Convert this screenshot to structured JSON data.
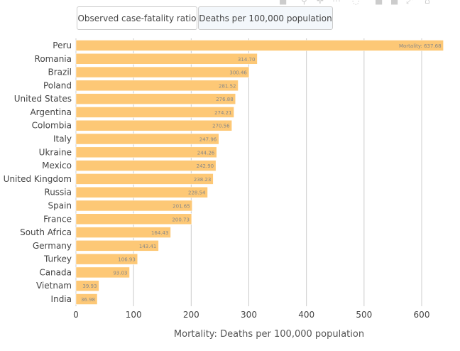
{
  "buttons": [
    {
      "label": "Observed case-fatality ratio",
      "active": false
    },
    {
      "label": "Deaths per 100,000 population",
      "active": true
    }
  ],
  "toolbar_icons": [
    "camera-icon",
    "zoom-icon",
    "pan-icon",
    "box-select-icon",
    "lasso-icon",
    "zoom-in-icon",
    "zoom-out-icon",
    "autoscale-icon",
    "home-icon"
  ],
  "colors": {
    "bar": "#fdc876",
    "grid": "#cccccc",
    "text": "#444444",
    "label": "#888888"
  },
  "chart_data": {
    "type": "bar",
    "orientation": "horizontal",
    "categories": [
      "Peru",
      "Romania",
      "Brazil",
      "Poland",
      "United States",
      "Argentina",
      "Colombia",
      "Italy",
      "Ukraine",
      "Mexico",
      "United Kingdom",
      "Russia",
      "Spain",
      "France",
      "South Africa",
      "Germany",
      "Turkey",
      "Canada",
      "Vietnam",
      "India"
    ],
    "values": [
      637.68,
      314.7,
      300.46,
      281.52,
      276.88,
      274.21,
      270.56,
      247.96,
      244.26,
      242.9,
      238.23,
      228.54,
      201.65,
      200.73,
      164.43,
      143.41,
      106.93,
      93.03,
      39.93,
      36.98
    ],
    "data_labels": [
      "Mortality: 637.68",
      "314.70",
      "300.46",
      "281.52",
      "276.88",
      "274.21",
      "270.56",
      "247.96",
      "244.26",
      "242.90",
      "238.23",
      "228.54",
      "201.65",
      "200.73",
      "164.43",
      "143.41",
      "106.93",
      "93.03",
      "39.93",
      "36.98"
    ],
    "xlabel": "Mortality: Deaths per 100,000 population",
    "xlim": [
      0,
      640
    ],
    "xticks": [
      "0",
      "100",
      "200",
      "300",
      "400",
      "500",
      "600"
    ],
    "xtick_values": [
      0,
      100,
      200,
      300,
      400,
      500,
      600
    ],
    "grid": true
  }
}
